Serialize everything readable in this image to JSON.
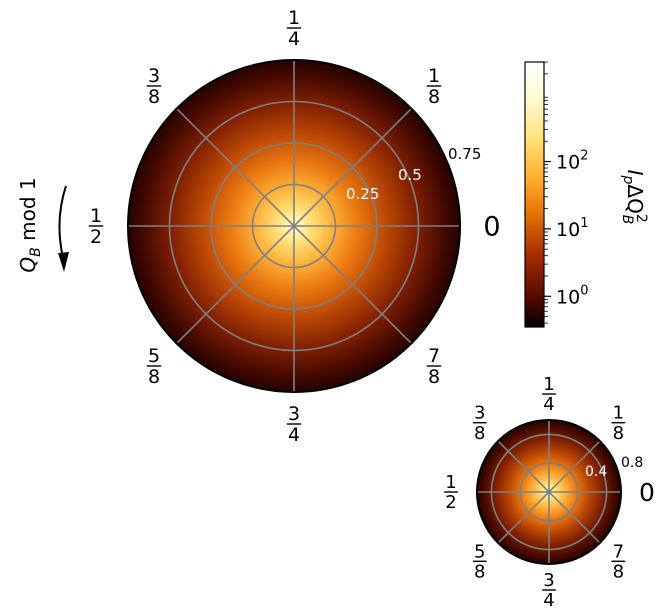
{
  "figure": {
    "rotation_label": "Q_B mod 1",
    "rotation_label_main": "Q",
    "rotation_label_sub": "B",
    "rotation_label_rest": " mod 1",
    "rotation_direction": "clockwise",
    "grid_color": "#808080",
    "colormap": "afmhot"
  },
  "chart_data": [
    {
      "type": "heatmap",
      "subtype": "polar",
      "angular_ticks": [
        {
          "value": "0",
          "label": "0"
        },
        {
          "value": "1/8",
          "num": "1",
          "den": "8"
        },
        {
          "value": "1/4",
          "num": "1",
          "den": "4"
        },
        {
          "value": "3/8",
          "num": "3",
          "den": "8"
        },
        {
          "value": "1/2",
          "num": "1",
          "den": "2"
        },
        {
          "value": "5/8",
          "num": "5",
          "den": "8"
        },
        {
          "value": "3/4",
          "num": "3",
          "den": "4"
        },
        {
          "value": "7/8",
          "num": "7",
          "den": "8"
        }
      ],
      "radial_ticks": [
        "0.25",
        "0.5",
        "0.75"
      ],
      "radial_values": [
        0.25,
        0.5,
        0.75
      ],
      "rmax": 1.0,
      "grid": true,
      "colorbar": {
        "label": "I_p ΔQ_B^2",
        "scale": "log",
        "ticks": [
          {
            "value": 1,
            "label": "10",
            "exp": "0"
          },
          {
            "value": 10,
            "label": "10",
            "exp": "1"
          },
          {
            "value": 100,
            "label": "10",
            "exp": "2"
          }
        ],
        "range": [
          0.35,
          3000
        ]
      }
    },
    {
      "type": "heatmap",
      "subtype": "polar",
      "angular_ticks": [
        {
          "value": "0",
          "label": "0"
        },
        {
          "value": "1/8",
          "num": "1",
          "den": "8"
        },
        {
          "value": "1/4",
          "num": "1",
          "den": "4"
        },
        {
          "value": "3/8",
          "num": "3",
          "den": "8"
        },
        {
          "value": "1/2",
          "num": "1",
          "den": "2"
        },
        {
          "value": "5/8",
          "num": "5",
          "den": "8"
        },
        {
          "value": "3/4",
          "num": "3",
          "den": "4"
        },
        {
          "value": "7/8",
          "num": "7",
          "den": "8"
        }
      ],
      "radial_ticks": [
        "0.4",
        "0.8"
      ],
      "radial_values": [
        0.4,
        0.8
      ],
      "rmax": 1.0,
      "grid": true
    }
  ]
}
